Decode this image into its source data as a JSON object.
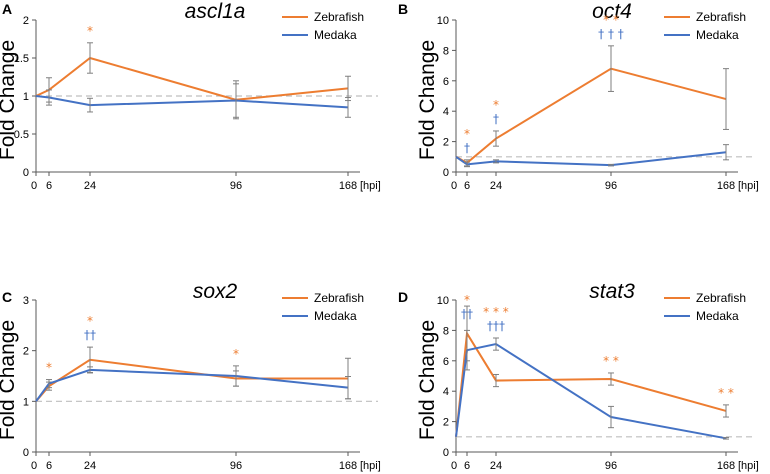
{
  "colors": {
    "zebrafish": "#ED7D31",
    "medaka": "#4472C4",
    "errorbar": "#7F7F7F",
    "baseline": "#BFBFBF"
  },
  "chart_data": [
    {
      "type": "line",
      "panel": "A",
      "title": "ascl1a",
      "ylabel": "Fold Change",
      "x": [
        0,
        6,
        24,
        96,
        168
      ],
      "x_ticks": [
        "0",
        "6",
        "24",
        "96",
        "168"
      ],
      "x_unit": "[hpi]",
      "ylim": [
        0,
        2
      ],
      "y_ticks": [
        "0",
        "0.5",
        "1",
        "1.5",
        "2"
      ],
      "baseline": 1,
      "legend": "top-right",
      "series": [
        {
          "name": "Zebrafish",
          "values": [
            1.0,
            1.08,
            1.5,
            0.95,
            1.1
          ],
          "errors": [
            null,
            0.16,
            0.2,
            0.25,
            0.16
          ]
        },
        {
          "name": "Medaka",
          "values": [
            1.0,
            0.98,
            0.88,
            0.94,
            0.85
          ],
          "errors": [
            null,
            0.1,
            0.09,
            0.22,
            0.13
          ]
        }
      ],
      "annotations": [
        {
          "series": "Zebrafish",
          "x": 24,
          "text": "*"
        }
      ]
    },
    {
      "type": "line",
      "panel": "B",
      "title": "oct4",
      "ylabel": "Fold Change",
      "x": [
        0,
        6,
        24,
        96,
        168
      ],
      "x_ticks": [
        "0",
        "6",
        "24",
        "96",
        "168"
      ],
      "x_unit": "[hpi]",
      "ylim": [
        0,
        10
      ],
      "y_ticks": [
        "0",
        "2",
        "4",
        "6",
        "8",
        "10"
      ],
      "baseline": 1,
      "legend": "top-right",
      "series": [
        {
          "name": "Zebrafish",
          "values": [
            1.0,
            0.6,
            2.2,
            6.8,
            4.8
          ],
          "errors": [
            null,
            0.2,
            0.5,
            1.5,
            2.0
          ]
        },
        {
          "name": "Medaka",
          "values": [
            1.0,
            0.5,
            0.7,
            0.45,
            1.3
          ],
          "errors": [
            null,
            0.15,
            0.1,
            0.05,
            0.5
          ]
        }
      ],
      "annotations": [
        {
          "series": "Zebrafish",
          "x": 6,
          "text": "*"
        },
        {
          "series": "Medaka",
          "x": 6,
          "text": "†"
        },
        {
          "series": "Zebrafish",
          "x": 24,
          "text": "*"
        },
        {
          "series": "Medaka",
          "x": 24,
          "text": "†"
        },
        {
          "series": "Zebrafish",
          "x": 96,
          "text": "* *"
        },
        {
          "series": "Medaka",
          "x": 96,
          "text": "† † †"
        }
      ]
    },
    {
      "type": "line",
      "panel": "C",
      "title": "sox2",
      "ylabel": "Fold Change",
      "x": [
        0,
        6,
        24,
        96,
        168
      ],
      "x_ticks": [
        "0",
        "6",
        "24",
        "96",
        "168"
      ],
      "x_unit": "[hpi]",
      "ylim": [
        0,
        3
      ],
      "y_ticks": [
        "0",
        "1",
        "2",
        "3"
      ],
      "baseline": 1,
      "legend": "top-right",
      "series": [
        {
          "name": "Zebrafish",
          "values": [
            1.0,
            1.3,
            1.82,
            1.45,
            1.45
          ],
          "errors": [
            null,
            0.08,
            0.25,
            0.15,
            0.4
          ]
        },
        {
          "name": "Medaka",
          "values": [
            1.0,
            1.35,
            1.62,
            1.5,
            1.27
          ],
          "errors": [
            null,
            0.08,
            0.06,
            0.2,
            0.22
          ]
        }
      ],
      "annotations": [
        {
          "series": "Zebrafish",
          "x": 6,
          "text": "*"
        },
        {
          "series": "Zebrafish",
          "x": 24,
          "text": "*"
        },
        {
          "series": "Medaka",
          "x": 24,
          "text": "††"
        },
        {
          "series": "Zebrafish",
          "x": 96,
          "text": "*"
        }
      ]
    },
    {
      "type": "line",
      "panel": "D",
      "title": "stat3",
      "ylabel": "Fold Change",
      "x": [
        0,
        6,
        24,
        96,
        168
      ],
      "x_ticks": [
        "0",
        "6",
        "24",
        "96",
        "168"
      ],
      "x_unit": "[hpi]",
      "ylim": [
        0,
        10
      ],
      "y_ticks": [
        "0",
        "2",
        "4",
        "6",
        "8",
        "10"
      ],
      "baseline": 1,
      "legend": "top-right",
      "series": [
        {
          "name": "Zebrafish",
          "values": [
            1.0,
            7.8,
            4.7,
            4.8,
            2.7
          ],
          "errors": [
            null,
            1.8,
            0.4,
            0.4,
            0.4
          ]
        },
        {
          "name": "Medaka",
          "values": [
            1.0,
            6.7,
            7.1,
            2.3,
            0.9
          ],
          "errors": [
            null,
            1.3,
            0.4,
            0.7,
            0.05
          ]
        }
      ],
      "annotations": [
        {
          "series": "Zebrafish",
          "x": 6,
          "text": "*"
        },
        {
          "series": "Medaka",
          "x": 6,
          "text": "††"
        },
        {
          "series": "Zebrafish",
          "x": 24,
          "text": "* * *"
        },
        {
          "series": "Medaka",
          "x": 24,
          "text": "†††"
        },
        {
          "series": "Zebrafish",
          "x": 96,
          "text": "* *"
        },
        {
          "series": "Zebrafish",
          "x": 168,
          "text": "* *"
        }
      ]
    }
  ]
}
